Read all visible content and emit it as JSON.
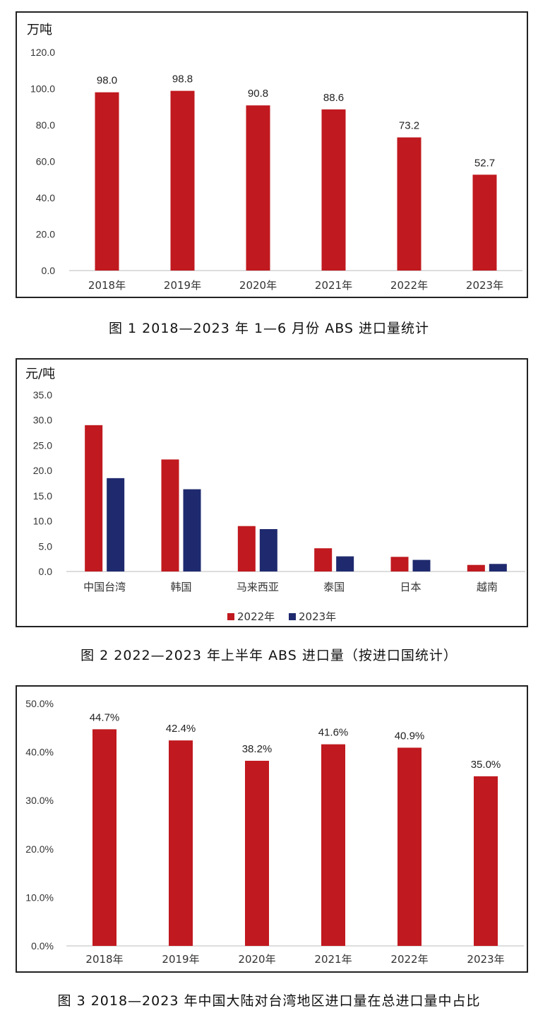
{
  "charts": [
    {
      "caption": "图 1  2018—2023 年 1—6 月份 ABS 进口量统计",
      "chart_data": {
        "type": "bar",
        "unit_label": "万吨",
        "categories": [
          "2018年",
          "2019年",
          "2020年",
          "2021年",
          "2022年",
          "2023年"
        ],
        "values": [
          98.0,
          98.8,
          90.8,
          88.6,
          73.2,
          52.7
        ],
        "data_labels": [
          "98.0",
          "98.8",
          "90.8",
          "88.6",
          "73.2",
          "52.7"
        ],
        "yticks": [
          "0.0",
          "20.0",
          "40.0",
          "60.0",
          "80.0",
          "100.0",
          "120.0"
        ],
        "ylim": [
          0,
          120
        ],
        "color": "#c0191f"
      }
    },
    {
      "caption": "图 2  2022—2023 年上半年 ABS 进口量（按进口国统计）",
      "chart_data": {
        "type": "bar",
        "unit_label": "元/吨",
        "categories": [
          "中国台湾",
          "韩国",
          "马来西亚",
          "泰国",
          "日本",
          "越南"
        ],
        "series": [
          {
            "name": "2022年",
            "values": [
              29.0,
              22.2,
              9.0,
              4.6,
              2.9,
              1.3
            ],
            "color": "#c0191f"
          },
          {
            "name": "2023年",
            "values": [
              18.5,
              16.3,
              8.4,
              3.0,
              2.3,
              1.5
            ],
            "color": "#1f2a6e"
          }
        ],
        "yticks": [
          "0.0",
          "5.0",
          "10.0",
          "15.0",
          "20.0",
          "25.0",
          "30.0",
          "35.0"
        ],
        "ylim": [
          0,
          35
        ],
        "legend": "bottom"
      }
    },
    {
      "caption": "图 3  2018—2023 年中国大陆对台湾地区进口量在总进口量中占比",
      "chart_data": {
        "type": "bar",
        "categories": [
          "2018年",
          "2019年",
          "2020年",
          "2021年",
          "2022年",
          "2023年"
        ],
        "values": [
          44.7,
          42.4,
          38.2,
          41.6,
          40.9,
          35.0
        ],
        "data_labels": [
          "44.7%",
          "42.4%",
          "38.2%",
          "41.6%",
          "40.9%",
          "35.0%"
        ],
        "yticks": [
          "0.0%",
          "10.0%",
          "20.0%",
          "30.0%",
          "40.0%",
          "50.0%"
        ],
        "ylim": [
          0,
          50
        ],
        "color": "#c0191f"
      }
    }
  ]
}
